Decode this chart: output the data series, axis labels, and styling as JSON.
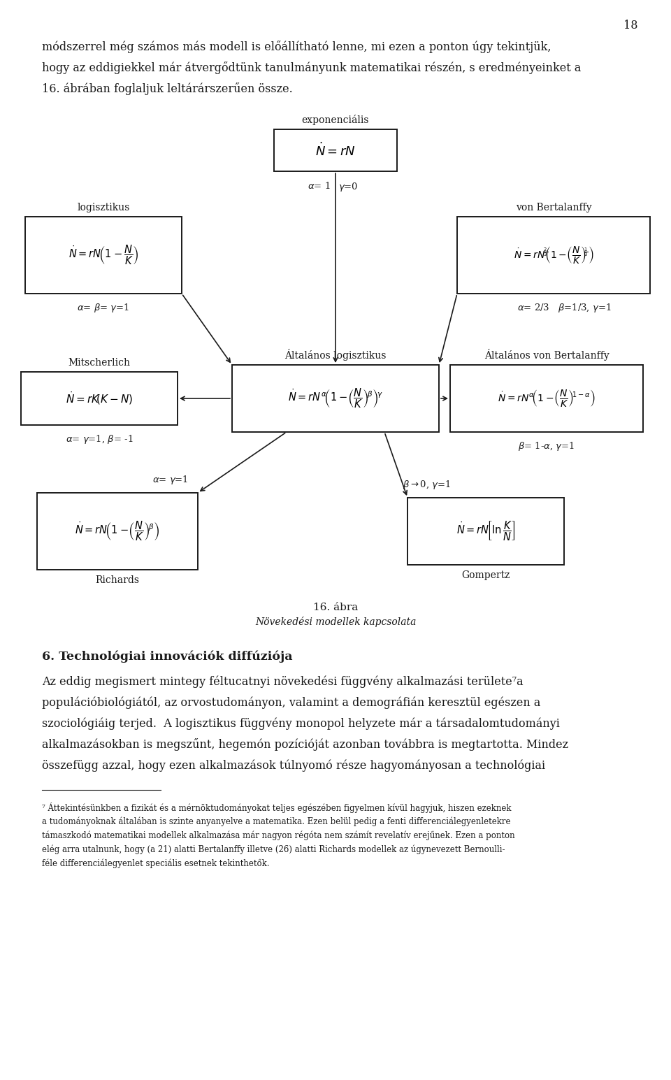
{
  "page_number": "18",
  "bg_color": "#ffffff",
  "text_color": "#1a1a1a",
  "para1": "módszerrel még számos más modell is előállítható lenne, mi ezen a ponton úgy tekintjük,",
  "para2": "hogy az eddigiekkel már átvergődtünk tanulmányunk matematikai részén, s eredményeinket a",
  "para3": "16. ábrában foglaljuk leltárárszerűen össze.",
  "caption1": "16. ábra",
  "caption2": "Növekedési modellek kapcsolata",
  "section_title": "6. Technológiai innovációk diffúziója",
  "body1": "Az eddig megismert mintegy féltucatnyi növekedési függvény alkalmazási területe⁷a",
  "body2": "populációbiológiától, az orvostudományon, valamint a demográfián keresztül egészen a",
  "body3": "szociológiáig terjed.  A logisztikus függvény monopol helyzete már a társadalomtudományi",
  "body4": "alkalmazásokban is megszűnt, hegemón pozícióját azonban továbbra is megtartotta. Mindez",
  "body5": "összefügg azzal, hogy ezen alkalmazások túlnyomó része hagyományosan a technológiai",
  "footnote": "⁷ Áttekintésünkben a fizikát és a mérnöktudományokat teljes egészében figyelmen kívül hagyjuk, hiszen ezeknek\na tudományoknak általában is szinte anyanyelve a matematika. Ezen belül pedig a fenti differenciálegyenletekre\ntámaszkodó matematikai modellek alkalmazása már nagyon régóta nem számít revelatív erejűnek. Ezen a ponton\nelég arra utalnunk, hogy (a 21) alatti Bertalanffy illetve (26) alatti Richards modellek az úgynevezett Bernoulli-\nféle differenciálegyenlet speciális esetnek tekinthetők."
}
